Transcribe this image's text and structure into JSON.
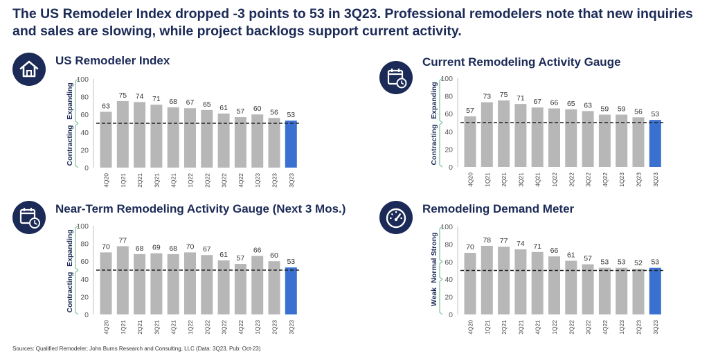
{
  "headline": "The US Remodeler Index dropped -3 points to 53 in 3Q23. Professional remodelers note that new inquiries and sales are slowing, while project backlogs support current activity.",
  "source": "Sources: Qualified Remodeler; John Burns Research and Consulting, LLC (Data: 3Q23, Pub: Oct-23)",
  "colors": {
    "bar": "#b7b7b7",
    "bar_highlight": "#3a70d0",
    "navy": "#1b2a56",
    "bracket": "#5fb98a",
    "reference_line": "#222222"
  },
  "panels": [
    {
      "title": "US Remodeler Index",
      "icon": "house-icon",
      "zones": [
        {
          "label": "Expanding",
          "from": 50,
          "to": 100
        },
        {
          "label": "Contracting",
          "from": 0,
          "to": 50
        }
      ]
    },
    {
      "title": "Current Remodeling Activity Gauge",
      "icon": "calendar-clock-icon",
      "zones": [
        {
          "label": "Expanding",
          "from": 50,
          "to": 100
        },
        {
          "label": "Contracting",
          "from": 0,
          "to": 50
        }
      ]
    },
    {
      "title": "Near-Term Remodeling Activity Gauge (Next 3 Mos.)",
      "icon": "calendar-clock-icon",
      "zones": [
        {
          "label": "Expanding",
          "from": 50,
          "to": 100
        },
        {
          "label": "Contracting",
          "from": 0,
          "to": 50
        }
      ]
    },
    {
      "title": "Remodeling Demand Meter",
      "icon": "speedometer-icon",
      "zones": [
        {
          "label": "Strong",
          "from": 60,
          "to": 100
        },
        {
          "label": "Normal",
          "from": 40,
          "to": 60
        },
        {
          "label": "Weak",
          "from": 0,
          "to": 40
        }
      ]
    }
  ],
  "chart_data": [
    {
      "type": "bar",
      "title": "US Remodeler Index",
      "categories": [
        "4Q20",
        "1Q21",
        "2Q21",
        "3Q21",
        "4Q21",
        "1Q22",
        "2Q22",
        "3Q22",
        "4Q22",
        "1Q23",
        "2Q23",
        "3Q23"
      ],
      "values": [
        63,
        75,
        74,
        71,
        68,
        67,
        65,
        61,
        57,
        60,
        56,
        53
      ],
      "highlight": "3Q23",
      "ylim": [
        0,
        100
      ],
      "yticks": [
        0,
        20,
        40,
        60,
        80,
        100
      ],
      "reference_line": 50,
      "grid": false
    },
    {
      "type": "bar",
      "title": "Current Remodeling Activity Gauge",
      "categories": [
        "4Q20",
        "1Q21",
        "2Q21",
        "3Q21",
        "4Q21",
        "1Q22",
        "2Q22",
        "3Q22",
        "4Q22",
        "1Q23",
        "2Q23",
        "3Q23"
      ],
      "values": [
        57,
        73,
        75,
        71,
        67,
        66,
        65,
        63,
        59,
        59,
        56,
        53
      ],
      "highlight": "3Q23",
      "ylim": [
        0,
        100
      ],
      "yticks": [
        0,
        20,
        40,
        60,
        80,
        100
      ],
      "reference_line": 50,
      "grid": false
    },
    {
      "type": "bar",
      "title": "Near-Term Remodeling Activity Gauge (Next 3 Mos.)",
      "categories": [
        "4Q20",
        "1Q21",
        "2Q21",
        "3Q21",
        "4Q21",
        "1Q22",
        "2Q22",
        "3Q22",
        "4Q22",
        "1Q23",
        "2Q23",
        "3Q23"
      ],
      "values": [
        70,
        77,
        68,
        69,
        68,
        70,
        67,
        61,
        57,
        66,
        60,
        53
      ],
      "highlight": "3Q23",
      "ylim": [
        0,
        100
      ],
      "yticks": [
        0,
        20,
        40,
        60,
        80,
        100
      ],
      "reference_line": 50,
      "grid": false
    },
    {
      "type": "bar",
      "title": "Remodeling Demand Meter",
      "categories": [
        "4Q20",
        "1Q21",
        "2Q21",
        "3Q21",
        "4Q21",
        "1Q22",
        "2Q22",
        "3Q22",
        "4Q22",
        "1Q23",
        "2Q23",
        "3Q23"
      ],
      "values": [
        70,
        78,
        77,
        74,
        71,
        66,
        61,
        57,
        53,
        53,
        52,
        53
      ],
      "highlight": "3Q23",
      "ylim": [
        0,
        100
      ],
      "yticks": [
        0,
        20,
        40,
        60,
        80,
        100
      ],
      "reference_line": 50,
      "grid": false
    }
  ]
}
